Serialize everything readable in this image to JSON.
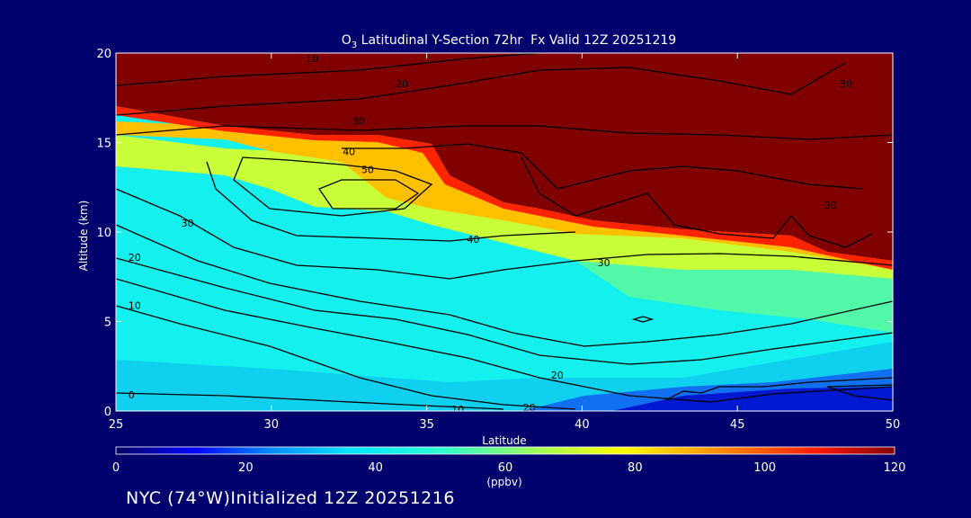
{
  "chart_data": {
    "type": "heatmap",
    "title_main": "O",
    "title_sub": "3",
    "title_rest": " Latitudinal Y-Section 72hr  Fx Valid 12Z 20251219",
    "xlabel": "Latitude",
    "ylabel": "Altitude (km)",
    "xlim": [
      25,
      50
    ],
    "ylim": [
      0,
      20
    ],
    "x_ticks": [
      25,
      30,
      35,
      40,
      45,
      50
    ],
    "y_ticks": [
      0,
      5,
      10,
      15,
      20
    ],
    "colorbar": {
      "min": 0,
      "max": 120,
      "ticks": [
        0,
        20,
        40,
        60,
        80,
        100,
        120
      ],
      "unit": "(ppbv)"
    },
    "tropopause_altitude_km": {
      "lat": [
        25,
        30,
        33,
        35,
        37,
        40,
        42,
        45,
        47,
        49,
        50
      ],
      "alt": [
        15.5,
        15,
        14.8,
        14.7,
        14,
        10.8,
        10,
        9.8,
        9.5,
        8.5,
        8
      ]
    },
    "contours": [
      {
        "level": 10,
        "lat": [
          25,
          28,
          30,
          33,
          35,
          38,
          40
        ],
        "alt": [
          5.5,
          4.5,
          3.5,
          2.5,
          1.8,
          0.8,
          0.3
        ]
      },
      {
        "level": 20,
        "lat": [
          25,
          28,
          30,
          33,
          35,
          38,
          40,
          42,
          45,
          48,
          50
        ],
        "alt": [
          8.5,
          7.5,
          6.5,
          5.5,
          5,
          4,
          3,
          2,
          1.5,
          1.5,
          1.5
        ]
      },
      {
        "level": 30,
        "lat": [
          25,
          28,
          30,
          33,
          35,
          38,
          40,
          43,
          45,
          48,
          50
        ],
        "alt": [
          11,
          10,
          9,
          8,
          7.5,
          7,
          7.5,
          8,
          8.5,
          8.5,
          8.5
        ]
      },
      {
        "level": 40,
        "lat": [
          29,
          31,
          34,
          37,
          40,
          42
        ],
        "alt": [
          13.5,
          10.5,
          9.8,
          9.5,
          9.6,
          10
        ]
      },
      {
        "level": 50,
        "lat": [
          30,
          32,
          34,
          35
        ],
        "alt": [
          13,
          11.5,
          11.3,
          12
        ]
      },
      {
        "level": 20,
        "lat": [
          28,
          35,
          45,
          50
        ],
        "alt": [
          18.5,
          18.8,
          19,
          19.5
        ]
      },
      {
        "level": 30,
        "lat": [
          25,
          35,
          45,
          50
        ],
        "alt": [
          16.3,
          16.8,
          17,
          16.5
        ]
      }
    ],
    "contour_labels": [
      {
        "text": "10",
        "lat": 31.3,
        "alt": 19.7
      },
      {
        "text": "20",
        "lat": 34.2,
        "alt": 18.3
      },
      {
        "text": "30",
        "lat": 32.8,
        "alt": 16.2
      },
      {
        "text": "40",
        "lat": 32.5,
        "alt": 14.5
      },
      {
        "text": "50",
        "lat": 33.1,
        "alt": 13.5
      },
      {
        "text": "30",
        "lat": 27.3,
        "alt": 10.5
      },
      {
        "text": "20",
        "lat": 25.6,
        "alt": 8.6
      },
      {
        "text": "10",
        "lat": 25.6,
        "alt": 5.9
      },
      {
        "text": "0",
        "lat": 25.5,
        "alt": 0.9
      },
      {
        "text": "40",
        "lat": 36.5,
        "alt": 9.6
      },
      {
        "text": "30",
        "lat": 40.7,
        "alt": 8.3
      },
      {
        "text": "20",
        "lat": 39.2,
        "alt": 2.0
      },
      {
        "text": "20",
        "lat": 38.3,
        "alt": 0.2
      },
      {
        "text": "10",
        "lat": 36.0,
        "alt": 0.1
      },
      {
        "text": "30",
        "lat": 48.0,
        "alt": 11.5
      },
      {
        "text": "30",
        "lat": 48.5,
        "alt": 18.3
      }
    ]
  },
  "footer": {
    "location": "NYC (74°W)",
    "initialized": "Initialized 12Z 20251216"
  }
}
